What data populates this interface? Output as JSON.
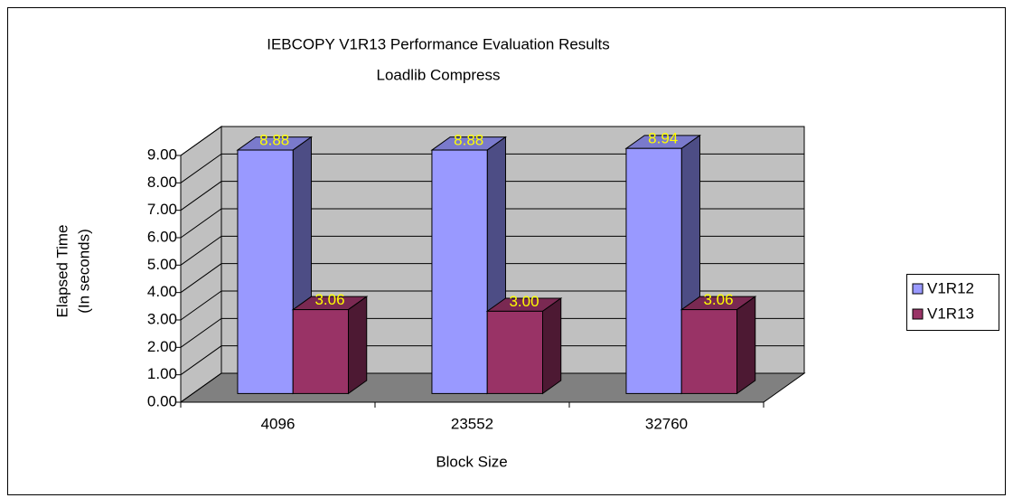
{
  "chart_data": {
    "type": "bar3d",
    "title": "IEBCOPY V1R13 Performance Evaluation Results",
    "subtitle": "Loadlib Compress",
    "y_label": [
      "Elapsed Time",
      "(In seconds)"
    ],
    "x_label": "Block Size",
    "categories": [
      "4096",
      "23552",
      "32760"
    ],
    "series": [
      {
        "name": "V1R12",
        "color": "#9999ff",
        "side": "#4d4d85",
        "top": "#7a7acc",
        "values": [
          8.88,
          8.88,
          8.94
        ],
        "value_labels": [
          "8.88",
          "8.88",
          "8.94"
        ]
      },
      {
        "name": "V1R13",
        "color": "#993366",
        "side": "#4d1933",
        "top": "#7a2952",
        "values": [
          3.06,
          3.0,
          3.06
        ],
        "value_labels": [
          "3.06",
          "3.00",
          "3.06"
        ]
      }
    ],
    "ylim": [
      0,
      9
    ],
    "yticks": [
      {
        "value": 0,
        "label": "0.00"
      },
      {
        "value": 1,
        "label": "1.00"
      },
      {
        "value": 2,
        "label": "2.00"
      },
      {
        "value": 3,
        "label": "3.00"
      },
      {
        "value": 4,
        "label": "4.00"
      },
      {
        "value": 5,
        "label": "5.00"
      },
      {
        "value": 6,
        "label": "6.00"
      },
      {
        "value": 7,
        "label": "7.00"
      },
      {
        "value": 8,
        "label": "8.00"
      },
      {
        "value": 9,
        "label": "9.00"
      }
    ],
    "grid": true,
    "legend": "right",
    "label_color": "#ffff00"
  }
}
